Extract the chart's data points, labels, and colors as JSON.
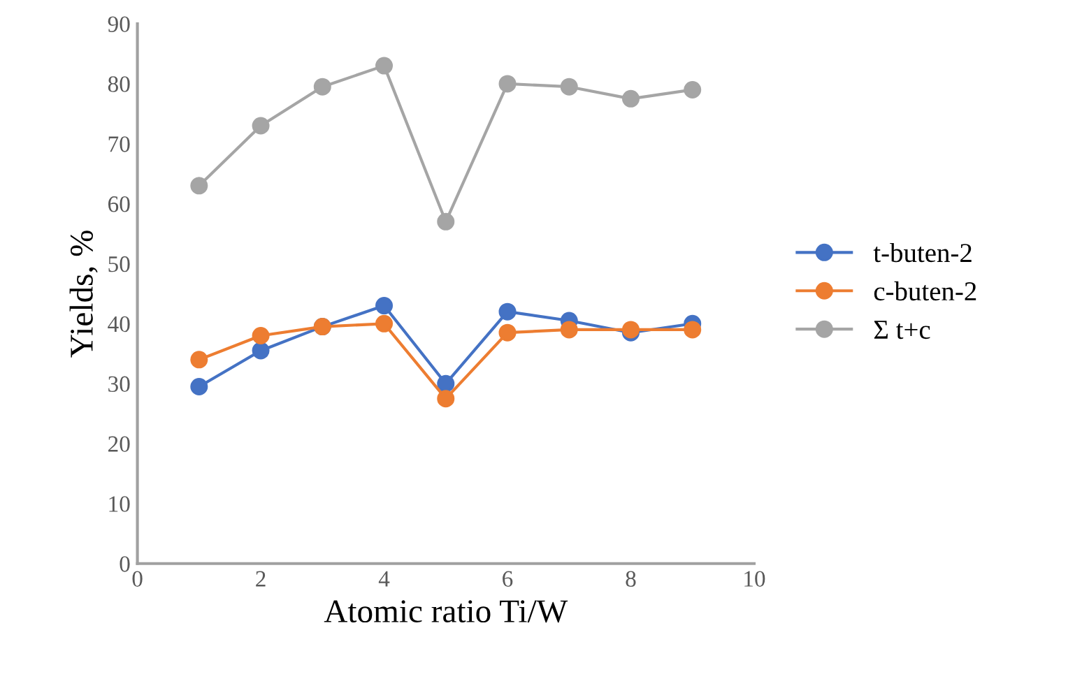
{
  "chart_data": {
    "type": "line",
    "xlabel": "Atomic ratio Ti/W",
    "ylabel": "Yields, %",
    "x": [
      1,
      2,
      3,
      4,
      5,
      6,
      7,
      8,
      9
    ],
    "series": [
      {
        "name": "t-buten-2",
        "color": "#4472c4",
        "values": [
          29.5,
          35.5,
          39.5,
          43,
          30,
          42,
          40.5,
          38.5,
          40
        ]
      },
      {
        "name": "c-buten-2",
        "color": "#ed7d31",
        "values": [
          34,
          38,
          39.5,
          40,
          27.5,
          38.5,
          39,
          39,
          39
        ]
      },
      {
        "name": "Σ t+c",
        "color": "#a5a5a5",
        "values": [
          63,
          73,
          79.5,
          83,
          57,
          80,
          79.5,
          77.5,
          79
        ]
      }
    ],
    "xlim": [
      0,
      10
    ],
    "xticks": [
      0,
      2,
      4,
      6,
      8,
      10
    ],
    "ylim": [
      0,
      90
    ],
    "yticks": [
      0,
      10,
      20,
      30,
      40,
      50,
      60,
      70,
      80,
      90
    ],
    "grid": false,
    "legend": "right",
    "marker": "circle",
    "line_style": "solid"
  }
}
